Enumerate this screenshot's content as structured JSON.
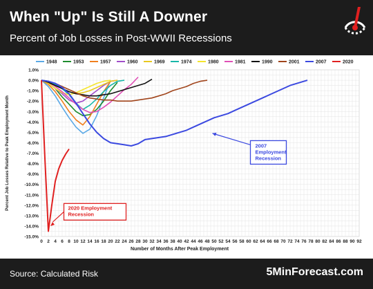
{
  "header": {
    "title": "When \"Up\" Is Still A Downer",
    "subtitle": "Percent of Job Losses in Post-WWII Recessions"
  },
  "footer": {
    "source": "Source: Calculated Risk",
    "brand": "5MinForecast.com"
  },
  "colors": {
    "header_bg": "#1c1c1c",
    "grid": "#e3e3e3",
    "callout_blue": "#3b49e0",
    "callout_red": "#e02020"
  },
  "chart_data": {
    "type": "line",
    "title": "Percent of Job Losses in Post-WWII Recessions",
    "xlabel": "Number of Months After Peak Employment",
    "ylabel": "Percent Job Losses Relative to Peak Employment Month",
    "xlim": [
      0,
      92
    ],
    "ylim": [
      -15,
      1
    ],
    "xticks": [
      "0",
      "2",
      "4",
      "6",
      "8",
      "10",
      "12",
      "14",
      "16",
      "18",
      "20",
      "22",
      "24",
      "26",
      "28",
      "30",
      "32",
      "34",
      "36",
      "38",
      "40",
      "42",
      "44",
      "46",
      "48",
      "50",
      "52",
      "54",
      "56",
      "58",
      "60",
      "62",
      "64",
      "66",
      "68",
      "70",
      "72",
      "74",
      "76",
      "78",
      "80",
      "82",
      "84",
      "86",
      "88",
      "90",
      "92"
    ],
    "yticks": [
      "1.0%",
      "0.0%",
      "-1.0%",
      "-2.0%",
      "-3.0%",
      "-4.0%",
      "-5.0%",
      "-6.0%",
      "-7.0%",
      "-8.0%",
      "-9.0%",
      "-10.0%",
      "-11.0%",
      "-12.0%",
      "-13.0%",
      "-14.0%",
      "-15.0%"
    ],
    "grid": true,
    "legend_position": "top",
    "series": [
      {
        "name": "1948",
        "color": "#5aa9e6",
        "x": [
          0,
          2,
          4,
          6,
          8,
          10,
          12,
          14,
          16,
          18,
          20
        ],
        "y": [
          0,
          -0.6,
          -1.5,
          -2.6,
          -3.6,
          -4.5,
          -5.1,
          -4.7,
          -3.4,
          -1.7,
          0
        ]
      },
      {
        "name": "1953",
        "color": "#1e8c2e",
        "x": [
          0,
          2,
          4,
          6,
          8,
          10,
          12,
          14,
          16,
          18,
          20,
          22
        ],
        "y": [
          0,
          -0.3,
          -0.8,
          -1.6,
          -2.3,
          -3.0,
          -3.4,
          -3.3,
          -2.8,
          -2.0,
          -1.0,
          -0.2
        ]
      },
      {
        "name": "1957",
        "color": "#f07f1e",
        "x": [
          0,
          2,
          4,
          6,
          8,
          10,
          12,
          14,
          16,
          18,
          20
        ],
        "y": [
          0,
          -0.4,
          -1.1,
          -2.0,
          -3.0,
          -3.8,
          -4.3,
          -3.5,
          -2.3,
          -1.1,
          -0.1
        ]
      },
      {
        "name": "1960",
        "color": "#a24ec9",
        "x": [
          0,
          2,
          4,
          6,
          8,
          10,
          12,
          14,
          16,
          18,
          20,
          22
        ],
        "y": [
          0,
          -0.3,
          -0.8,
          -1.3,
          -1.9,
          -2.2,
          -2.0,
          -1.5,
          -1.0,
          -0.5,
          -0.1,
          0
        ]
      },
      {
        "name": "1969",
        "color": "#e8c81e",
        "x": [
          0,
          2,
          4,
          6,
          8,
          10,
          12,
          14,
          16,
          18,
          20,
          22
        ],
        "y": [
          0,
          -0.2,
          -0.5,
          -0.8,
          -1.1,
          -1.3,
          -1.2,
          -1.0,
          -0.7,
          -0.4,
          -0.1,
          0
        ]
      },
      {
        "name": "1974",
        "color": "#17b6a8",
        "x": [
          0,
          2,
          4,
          6,
          8,
          10,
          12,
          14,
          16,
          18,
          20,
          22,
          24
        ],
        "y": [
          0,
          -0.1,
          -0.4,
          -0.8,
          -1.4,
          -2.2,
          -2.8,
          -2.4,
          -1.8,
          -1.1,
          -0.5,
          -0.1,
          0
        ]
      },
      {
        "name": "1980",
        "color": "#f5e52c",
        "x": [
          0,
          2,
          4,
          6,
          8,
          10,
          12,
          14,
          16,
          18,
          20
        ],
        "y": [
          0,
          -0.3,
          -0.8,
          -1.2,
          -1.4,
          -1.2,
          -0.9,
          -0.6,
          -0.3,
          -0.1,
          0
        ]
      },
      {
        "name": "1981",
        "color": "#e04fb6",
        "x": [
          0,
          2,
          4,
          6,
          8,
          10,
          12,
          14,
          16,
          18,
          20,
          22,
          24,
          26,
          28
        ],
        "y": [
          0,
          -0.2,
          -0.6,
          -1.1,
          -1.7,
          -2.3,
          -2.8,
          -3.1,
          -3.0,
          -2.6,
          -2.1,
          -1.5,
          -0.9,
          -0.4,
          0.3
        ]
      },
      {
        "name": "1990",
        "color": "#111111",
        "x": [
          0,
          2,
          4,
          6,
          8,
          10,
          12,
          14,
          16,
          18,
          20,
          22,
          24,
          26,
          28,
          30,
          32
        ],
        "y": [
          0,
          -0.2,
          -0.5,
          -0.8,
          -1.1,
          -1.3,
          -1.4,
          -1.5,
          -1.5,
          -1.4,
          -1.3,
          -1.1,
          -0.9,
          -0.7,
          -0.5,
          -0.3,
          0.1
        ]
      },
      {
        "name": "2001",
        "color": "#a0441b",
        "x": [
          0,
          2,
          4,
          6,
          8,
          10,
          12,
          14,
          16,
          18,
          20,
          22,
          24,
          26,
          28,
          30,
          32,
          34,
          36,
          38,
          40,
          42,
          44,
          46,
          48
        ],
        "y": [
          0,
          -0.1,
          -0.3,
          -0.6,
          -0.9,
          -1.2,
          -1.5,
          -1.7,
          -1.8,
          -1.9,
          -1.9,
          -2.0,
          -2.0,
          -2.0,
          -1.9,
          -1.8,
          -1.7,
          -1.5,
          -1.3,
          -1.0,
          -0.8,
          -0.6,
          -0.3,
          -0.1,
          0
        ]
      },
      {
        "name": "2007",
        "color": "#3b49e0",
        "x": [
          0,
          2,
          4,
          6,
          8,
          10,
          12,
          14,
          16,
          18,
          20,
          22,
          24,
          26,
          28,
          30,
          32,
          34,
          36,
          38,
          40,
          42,
          44,
          46,
          48,
          50,
          52,
          54,
          56,
          58,
          60,
          62,
          64,
          66,
          68,
          70,
          72,
          74,
          76,
          77
        ],
        "y": [
          0,
          -0.1,
          -0.3,
          -0.7,
          -1.3,
          -2.2,
          -3.2,
          -4.2,
          -5.0,
          -5.6,
          -6.0,
          -6.1,
          -6.2,
          -6.3,
          -6.1,
          -5.7,
          -5.6,
          -5.5,
          -5.4,
          -5.2,
          -5.0,
          -4.8,
          -4.5,
          -4.2,
          -3.9,
          -3.6,
          -3.4,
          -3.2,
          -2.9,
          -2.6,
          -2.3,
          -2.0,
          -1.7,
          -1.4,
          -1.1,
          -0.8,
          -0.5,
          -0.3,
          -0.1,
          0
        ]
      },
      {
        "name": "2020",
        "color": "#e02020",
        "x": [
          0,
          1,
          2,
          3,
          4,
          5,
          6,
          7,
          8
        ],
        "y": [
          0,
          -7.5,
          -14.5,
          -12.0,
          -9.7,
          -8.5,
          -7.7,
          -7.1,
          -6.6
        ]
      }
    ],
    "annotations": [
      {
        "text": "2007 Employment Recession",
        "color": "#3b49e0"
      },
      {
        "text": "2020 Employment Recession",
        "color": "#e02020"
      }
    ]
  }
}
